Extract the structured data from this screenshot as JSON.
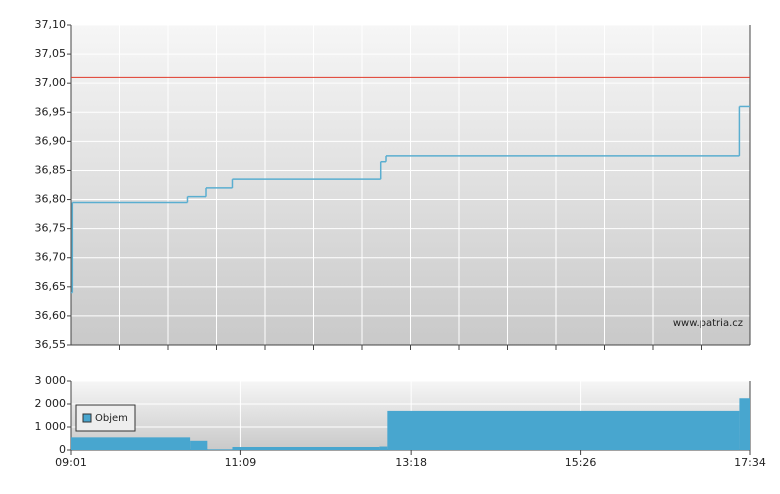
{
  "chart_data": [
    {
      "type": "step-line",
      "watermark": "www.patria.cz",
      "xlim": [
        "09:01",
        "17:34"
      ],
      "ylim": [
        36.55,
        37.1
      ],
      "yticks": [
        {
          "value": 36.55,
          "label": "36,55"
        },
        {
          "value": 36.6,
          "label": "36,60"
        },
        {
          "value": 36.65,
          "label": "36,65"
        },
        {
          "value": 36.7,
          "label": "36,70"
        },
        {
          "value": 36.75,
          "label": "36,75"
        },
        {
          "value": 36.8,
          "label": "36,80"
        },
        {
          "value": 36.85,
          "label": "36,85"
        },
        {
          "value": 36.9,
          "label": "36,90"
        },
        {
          "value": 36.95,
          "label": "36,95"
        },
        {
          "value": 37.0,
          "label": "37,00"
        },
        {
          "value": 37.05,
          "label": "37,05"
        },
        {
          "value": 37.1,
          "label": "37,10"
        }
      ],
      "grid": true,
      "reference_line": {
        "value": 37.01,
        "color": "#e03a2a"
      },
      "series": [
        {
          "color": "#5aaed0",
          "x": [
            "09:01",
            "09:02",
            "10:29",
            "10:43",
            "11:03",
            "12:55",
            "12:59",
            "17:26"
          ],
          "values": [
            36.64,
            36.795,
            36.805,
            36.82,
            36.835,
            36.865,
            36.875,
            36.96
          ]
        }
      ]
    },
    {
      "type": "step-area",
      "legend": "top-left",
      "xlim": [
        "09:01",
        "17:34"
      ],
      "ylim": [
        0,
        3000
      ],
      "xticks": [
        "09:01",
        "11:09",
        "13:18",
        "15:26",
        "17:34"
      ],
      "yticks": [
        0,
        {
          "value": 1000,
          "label": "1 000"
        },
        {
          "value": 2000,
          "label": "2 000"
        },
        {
          "value": 3000,
          "label": "3 000"
        }
      ],
      "grid": true,
      "series": [
        {
          "name": "Objem",
          "color": "#48a6cf",
          "x": [
            "09:01",
            "10:31",
            "10:44",
            "11:03",
            "12:54",
            "13:00",
            "17:26"
          ],
          "values": [
            550,
            400,
            30,
            130,
            150,
            1700,
            2250
          ]
        }
      ]
    }
  ]
}
